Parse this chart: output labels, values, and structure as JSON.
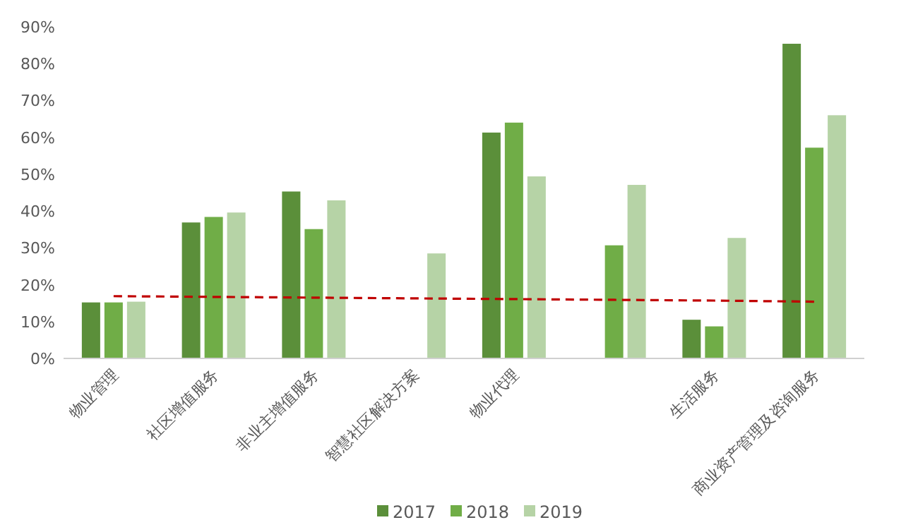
{
  "chart_data": {
    "type": "bar",
    "categories": [
      "物业管理",
      "社区增值服务",
      "非业主增值服务",
      "智慧社区解决方案",
      "物业代理",
      null,
      "生活服务",
      "商业资产管理及咨询服务"
    ],
    "series": [
      {
        "name": "2017",
        "color": "#5b8f3a",
        "values": [
          15.2,
          36.9,
          45.3,
          null,
          61.3,
          null,
          10.5,
          85.4
        ]
      },
      {
        "name": "2018",
        "color": "#70ad47",
        "values": [
          15.2,
          38.4,
          35.1,
          null,
          64.0,
          30.7,
          8.7,
          57.2
        ]
      },
      {
        "name": "2019",
        "color": "#b6d3a6",
        "values": [
          15.4,
          39.6,
          42.9,
          28.5,
          49.4,
          47.1,
          32.7,
          66.0
        ]
      },
      {
        "type": "line",
        "color": "#c00000",
        "line_style": "dashed",
        "values": [
          16.9,
          16.7,
          16.5,
          16.3,
          16.1,
          15.9,
          15.7,
          15.4
        ]
      }
    ],
    "ylim": [
      0,
      90
    ],
    "yticks": [
      {
        "value": 0,
        "label": "0%"
      },
      {
        "value": 10,
        "label": "10%"
      },
      {
        "value": 20,
        "label": "20%"
      },
      {
        "value": 30,
        "label": "30%"
      },
      {
        "value": 40,
        "label": "40%"
      },
      {
        "value": 50,
        "label": "50%"
      },
      {
        "value": 60,
        "label": "60%"
      },
      {
        "value": 70,
        "label": "70%"
      },
      {
        "value": 80,
        "label": "80%"
      },
      {
        "value": 90,
        "label": "90%"
      }
    ],
    "legend": "bottom"
  }
}
